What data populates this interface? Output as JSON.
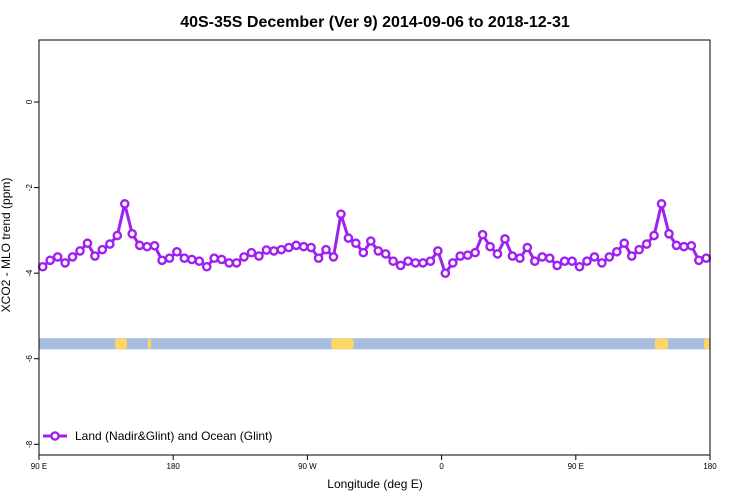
{
  "chart_data": {
    "type": "line",
    "title": "40S-35S December (Ver 9)   2014-09-06 to 2018-12-31",
    "xlabel": "Longitude (deg E)",
    "ylabel": "XCO2 - MLO trend (ppm)",
    "x_ticks": [
      {
        "value": 90,
        "label": "90 E"
      },
      {
        "value": 180,
        "label": "180"
      },
      {
        "value": 270,
        "label": "90 W"
      },
      {
        "value": 360,
        "label": "0"
      },
      {
        "value": 450,
        "label": "90 E"
      },
      {
        "value": 540,
        "label": "180"
      }
    ],
    "y_ticks": [
      {
        "value": 0,
        "label": "0"
      },
      {
        "value": -2,
        "label": "-2"
      },
      {
        "value": -4,
        "label": "-4"
      },
      {
        "value": -6,
        "label": "-6"
      },
      {
        "value": -8,
        "label": "-8"
      }
    ],
    "xlim": [
      90,
      540
    ],
    "ylim": [
      -8.25,
      1.45
    ],
    "grid": false,
    "legend_position": "bottom-left",
    "series": [
      {
        "name": "Land (Nadir&Glint) and Ocean (Glint)",
        "color": "#a020f0",
        "x": [
          92.5,
          97.5,
          102.5,
          107.5,
          112.5,
          117.5,
          122.5,
          127.5,
          132.5,
          137.5,
          142.5,
          147.5,
          152.5,
          157.5,
          162.5,
          167.5,
          172.5,
          177.5,
          182.5,
          187.5,
          192.5,
          197.5,
          202.5,
          207.5,
          212.5,
          217.5,
          222.5,
          227.5,
          232.5,
          237.5,
          242.5,
          247.5,
          252.5,
          257.5,
          262.5,
          267.5,
          272.5,
          277.5,
          282.5,
          287.5,
          292.5,
          297.5,
          302.5,
          307.5,
          312.5,
          317.5,
          322.5,
          327.5,
          332.5,
          337.5,
          342.5,
          347.5,
          352.5,
          357.5,
          362.5,
          367.5,
          372.5,
          377.5,
          382.5,
          387.5,
          392.5,
          397.5,
          402.5,
          407.5,
          412.5,
          417.5,
          422.5,
          427.5,
          432.5,
          437.5,
          442.5,
          447.5,
          452.5,
          457.5,
          462.5,
          467.5,
          472.5,
          477.5,
          482.5,
          487.5,
          492.5,
          497.5,
          502.5,
          507.5,
          512.5,
          517.5,
          522.5,
          527.5,
          532.5,
          537.5
        ],
        "y": [
          -3.85,
          -3.7,
          -3.62,
          -3.76,
          -3.62,
          -3.48,
          -3.3,
          -3.6,
          -3.45,
          -3.32,
          -3.12,
          -2.38,
          -3.08,
          -3.35,
          -3.38,
          -3.36,
          -3.7,
          -3.65,
          -3.5,
          -3.65,
          -3.68,
          -3.72,
          -3.85,
          -3.65,
          -3.68,
          -3.76,
          -3.76,
          -3.62,
          -3.52,
          -3.6,
          -3.46,
          -3.48,
          -3.45,
          -3.4,
          -3.35,
          -3.38,
          -3.4,
          -3.65,
          -3.45,
          -3.62,
          -2.62,
          -3.18,
          -3.3,
          -3.52,
          -3.25,
          -3.48,
          -3.55,
          -3.72,
          -3.82,
          -3.72,
          -3.76,
          -3.76,
          -3.72,
          -3.48,
          -4.0,
          -3.76,
          -3.6,
          -3.58,
          -3.52,
          -3.1,
          -3.38,
          -3.55,
          -3.2,
          -3.6,
          -3.65,
          -3.4,
          -3.72,
          -3.62,
          -3.65,
          -3.82,
          -3.72,
          -3.72,
          -3.85,
          -3.72,
          -3.62,
          -3.76,
          -3.62,
          -3.5,
          -3.3,
          -3.6,
          -3.45,
          -3.32,
          -3.12,
          -2.38,
          -3.08,
          -3.35,
          -3.38,
          -3.36,
          -3.7,
          -3.65
        ]
      }
    ],
    "land_band": {
      "y_range": [
        -5.78,
        -5.52
      ],
      "ocean_color": "#a7bcde",
      "land_color": "#fdd66a",
      "land_segments": [
        [
          141,
          149
        ],
        [
          163,
          165
        ],
        [
          286,
          301
        ],
        [
          503,
          512
        ],
        [
          536,
          540
        ]
      ]
    }
  }
}
